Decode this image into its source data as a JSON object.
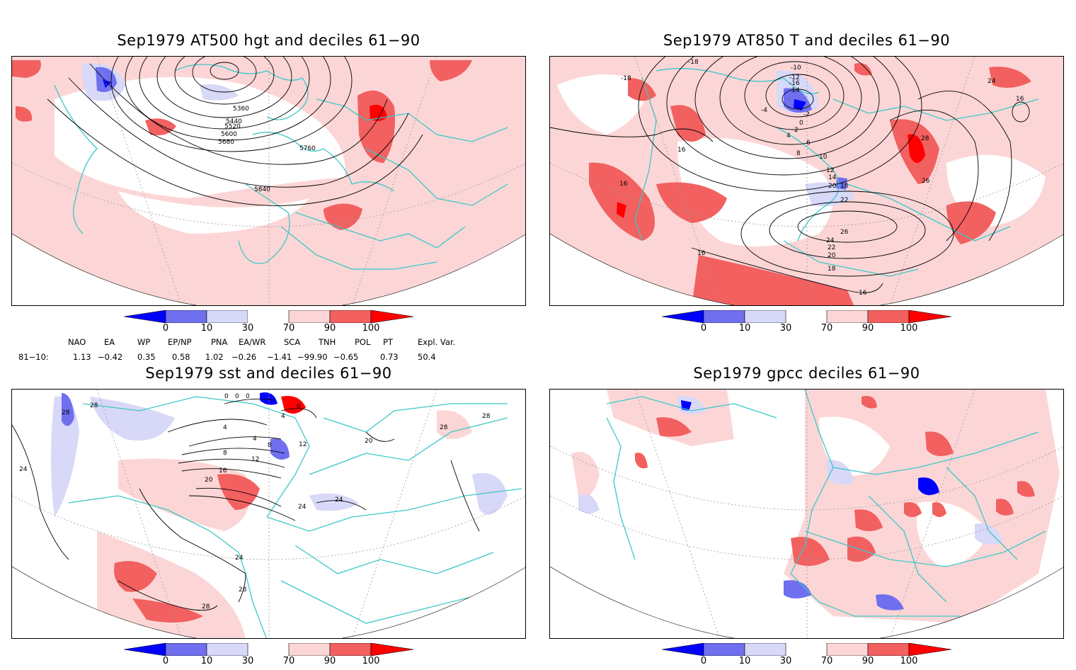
{
  "colors": {
    "deep_blue": "#0000ff",
    "mid_blue": "#6f6ff0",
    "light_blue": "#d8d8f8",
    "light_red": "#fcd6d6",
    "mid_red": "#f26060",
    "deep_red": "#ff0000",
    "coastline": "#3cc8c8"
  },
  "panels": [
    {
      "id": "p1",
      "title": "Sep1979 AT500 hgt and deciles 61−90",
      "contour_labels": [
        "5360",
        "5440",
        "5520",
        "5600",
        "5680",
        "5760",
        "5840"
      ]
    },
    {
      "id": "p2",
      "title": "Sep1979 AT850 T and deciles 61−90",
      "contour_labels": [
        "-18",
        "-16",
        "-14",
        "-12",
        "-10",
        "-4",
        "-2",
        "0",
        "2",
        "4",
        "6",
        "8",
        "10",
        "12",
        "14",
        "16",
        "18",
        "20",
        "22",
        "24",
        "26",
        "28"
      ]
    },
    {
      "id": "p3",
      "title": "Sep1979 sst and deciles 61−90",
      "contour_labels": [
        "0",
        "4",
        "8",
        "12",
        "16",
        "20",
        "24",
        "28"
      ]
    },
    {
      "id": "p4",
      "title": "Sep1979 gpcc deciles 61−90",
      "contour_labels": []
    }
  ],
  "colorbar": {
    "labels": [
      "0",
      "10",
      "30",
      "70",
      "90",
      "100"
    ]
  },
  "indices": {
    "headers": [
      "NAO",
      "EA",
      "WP",
      "EP/NP",
      "PNA",
      "EA/WR",
      "SCA",
      "TNH",
      "POL",
      "PT",
      "Expl. Var."
    ],
    "row_label": "81−10:",
    "values": [
      "1.13",
      "−0.42",
      "0.35",
      "0.58",
      "1.02",
      "−0.26",
      "−1.41",
      "−99.90",
      "−0.65",
      "0.73",
      "50.4"
    ]
  }
}
